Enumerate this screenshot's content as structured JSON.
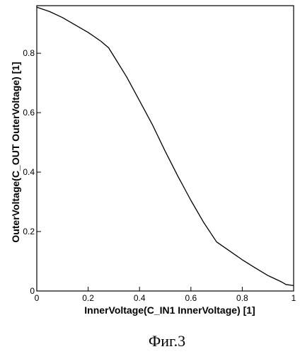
{
  "chart_data": {
    "type": "line",
    "xlabel": "InnerVoltage(C_IN1 InnerVoltage) [1]",
    "ylabel": "OuterVoltage(C_OUT OuterVoltage) [1]",
    "xlim": [
      0,
      1
    ],
    "ylim": [
      0,
      0.96
    ],
    "x_ticks": [
      0,
      0.2,
      0.4,
      0.6,
      0.8,
      1
    ],
    "x_tick_labels": [
      "0",
      "0.2",
      "0.4",
      "0.6",
      "0.8",
      "1"
    ],
    "y_ticks": [
      0,
      0.2,
      0.4,
      0.6,
      0.8
    ],
    "y_tick_labels": [
      "0",
      "0.2",
      "0.4",
      "0.6",
      "0.8"
    ],
    "grid": false,
    "series": [
      {
        "x": [
          0,
          0.05,
          0.1,
          0.15,
          0.2,
          0.25,
          0.28,
          0.3,
          0.35,
          0.4,
          0.45,
          0.5,
          0.55,
          0.6,
          0.65,
          0.7,
          0.75,
          0.8,
          0.85,
          0.9,
          0.95,
          0.97,
          1.0
        ],
        "y": [
          0.955,
          0.94,
          0.92,
          0.895,
          0.87,
          0.84,
          0.818,
          0.79,
          0.72,
          0.64,
          0.56,
          0.47,
          0.385,
          0.305,
          0.23,
          0.165,
          0.135,
          0.105,
          0.078,
          0.052,
          0.032,
          0.022,
          0.018
        ]
      }
    ]
  },
  "caption": "Фиг.3"
}
